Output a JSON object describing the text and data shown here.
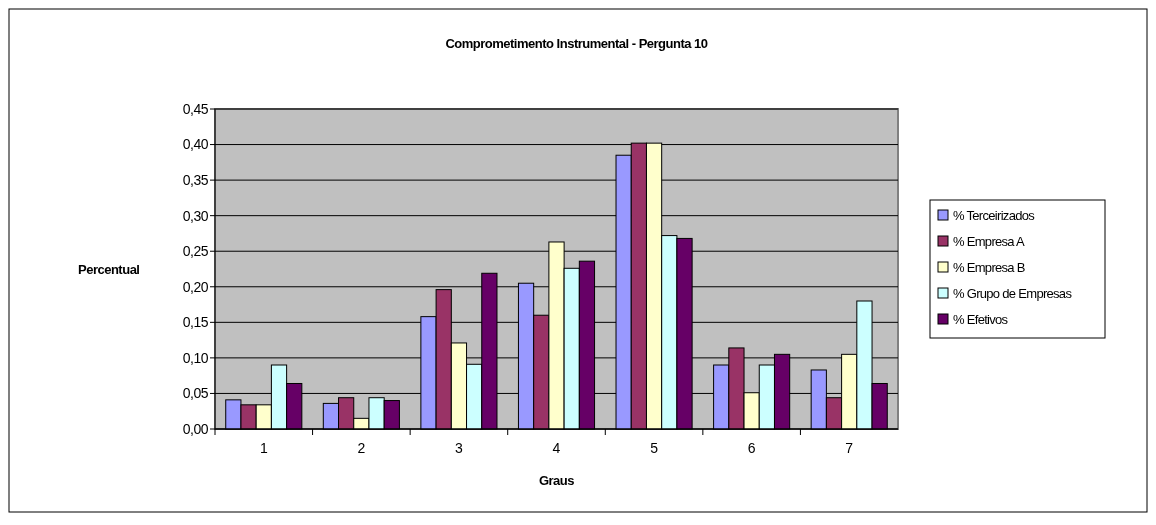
{
  "chart_data": {
    "type": "bar",
    "title": "Comprometimento Instrumental - Pergunta 10",
    "xlabel": "Graus",
    "ylabel": "Percentual",
    "categories": [
      "1",
      "2",
      "3",
      "4",
      "5",
      "6",
      "7"
    ],
    "series": [
      {
        "name": "% Terceirizados",
        "color": "#9999ff",
        "values": [
          0.041,
          0.036,
          0.158,
          0.205,
          0.385,
          0.09,
          0.083
        ]
      },
      {
        "name": "% Empresa A",
        "color": "#993366",
        "values": [
          0.034,
          0.044,
          0.196,
          0.16,
          0.402,
          0.114,
          0.044
        ]
      },
      {
        "name": "% Empresa B",
        "color": "#ffffcc",
        "values": [
          0.034,
          0.015,
          0.121,
          0.263,
          0.402,
          0.051,
          0.105
        ]
      },
      {
        "name": "% Grupo de Empresas",
        "color": "#ccffff",
        "values": [
          0.09,
          0.044,
          0.091,
          0.226,
          0.272,
          0.09,
          0.18
        ]
      },
      {
        "name": "% Efetivos",
        "color": "#660066",
        "values": [
          0.064,
          0.04,
          0.219,
          0.236,
          0.268,
          0.105,
          0.064
        ]
      }
    ],
    "ylim": [
      0,
      0.45
    ],
    "yticks": [
      {
        "value": 0,
        "label": "0,00"
      },
      {
        "value": 0.05,
        "label": "0,05"
      },
      {
        "value": 0.1,
        "label": "0,10"
      },
      {
        "value": 0.15,
        "label": "0,15"
      },
      {
        "value": 0.2,
        "label": "0,20"
      },
      {
        "value": 0.25,
        "label": "0,25"
      },
      {
        "value": 0.3,
        "label": "0,30"
      },
      {
        "value": 0.35,
        "label": "0,35"
      },
      {
        "value": 0.4,
        "label": "0,40"
      },
      {
        "value": 0.45,
        "label": "0,45"
      }
    ],
    "grid": "y",
    "legend": "right"
  }
}
